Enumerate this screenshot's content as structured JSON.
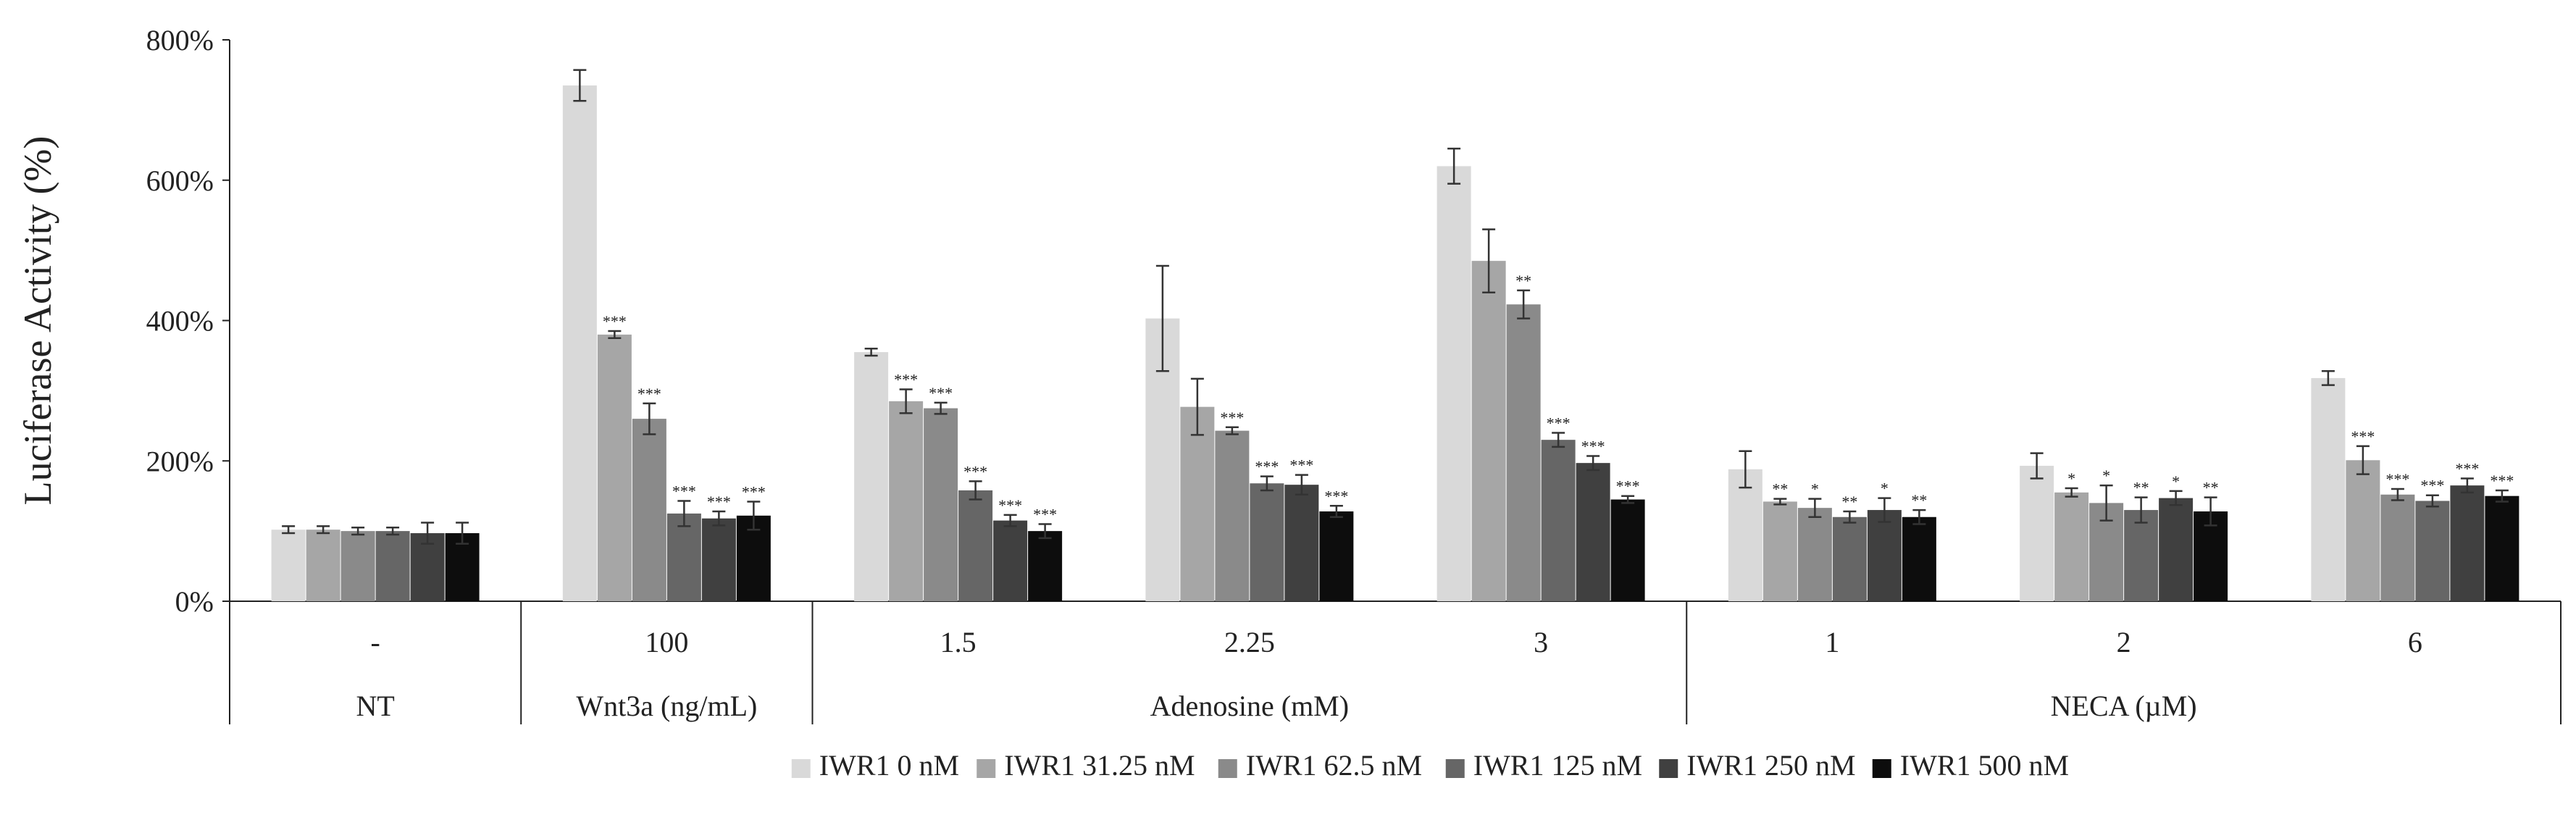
{
  "chart_data": {
    "type": "bar",
    "title": "",
    "ylabel": "Luciferase Activity (%)",
    "xlabel": "",
    "ylim": [
      0,
      800
    ],
    "yticks": [
      0,
      200,
      400,
      600,
      800
    ],
    "ytick_labels": [
      "0%",
      "200%",
      "400%",
      "600%",
      "800%"
    ],
    "grid": false,
    "legend_position": "bottom",
    "categories": [
      "-",
      "100",
      "1.5",
      "2.25",
      "3",
      "1",
      "2",
      "6"
    ],
    "groups": [
      {
        "label": "NT",
        "categories": [
          "-"
        ]
      },
      {
        "label": "Wnt3a (ng/mL)",
        "categories": [
          "100"
        ]
      },
      {
        "label": "Adenosine (mM)",
        "categories": [
          "1.5",
          "2.25",
          "3"
        ]
      },
      {
        "label": "NECA (µM)",
        "categories": [
          "1",
          "2",
          "6"
        ]
      }
    ],
    "series": [
      {
        "name": "IWR1 0 nM",
        "color": "#d9d9d9",
        "values": [
          102,
          735,
          355,
          403,
          620,
          188,
          193,
          318
        ],
        "errors": [
          5,
          22,
          5,
          75,
          25,
          26,
          18,
          10
        ],
        "significance": [
          "",
          "",
          "",
          "",
          "",
          "",
          "",
          ""
        ]
      },
      {
        "name": "IWR1 31.25 nM",
        "color": "#a6a6a6",
        "values": [
          102,
          380,
          285,
          277,
          485,
          142,
          155,
          201
        ],
        "errors": [
          5,
          5,
          17,
          40,
          45,
          4,
          6,
          20
        ],
        "significance": [
          "",
          "***",
          "***",
          "",
          "",
          "**",
          "*",
          "***"
        ]
      },
      {
        "name": "IWR1 62.5 nM",
        "color": "#8a8a8a",
        "values": [
          100,
          260,
          275,
          243,
          423,
          133,
          140,
          152
        ],
        "errors": [
          5,
          22,
          8,
          5,
          20,
          13,
          25,
          8
        ],
        "significance": [
          "",
          "***",
          "***",
          "***",
          "**",
          "*",
          "*",
          "***"
        ]
      },
      {
        "name": "IWR1 125 nM",
        "color": "#666666",
        "values": [
          100,
          125,
          158,
          168,
          230,
          120,
          130,
          143
        ],
        "errors": [
          5,
          18,
          13,
          10,
          10,
          8,
          18,
          8
        ],
        "significance": [
          "",
          "***",
          "***",
          "***",
          "***",
          "**",
          "**",
          "***"
        ]
      },
      {
        "name": "IWR1 250 nM",
        "color": "#404040",
        "values": [
          97,
          118,
          115,
          166,
          197,
          130,
          147,
          165
        ],
        "errors": [
          15,
          10,
          8,
          14,
          10,
          17,
          10,
          10
        ],
        "significance": [
          "",
          "***",
          "***",
          "***",
          "***",
          "*",
          "*",
          "***"
        ]
      },
      {
        "name": "IWR1 500 nM",
        "color": "#0d0d0d",
        "values": [
          97,
          122,
          100,
          128,
          145,
          120,
          128,
          150
        ],
        "errors": [
          15,
          20,
          10,
          8,
          5,
          10,
          20,
          8
        ],
        "significance": [
          "",
          "***",
          "***",
          "***",
          "***",
          "**",
          "**",
          "***"
        ]
      }
    ]
  }
}
